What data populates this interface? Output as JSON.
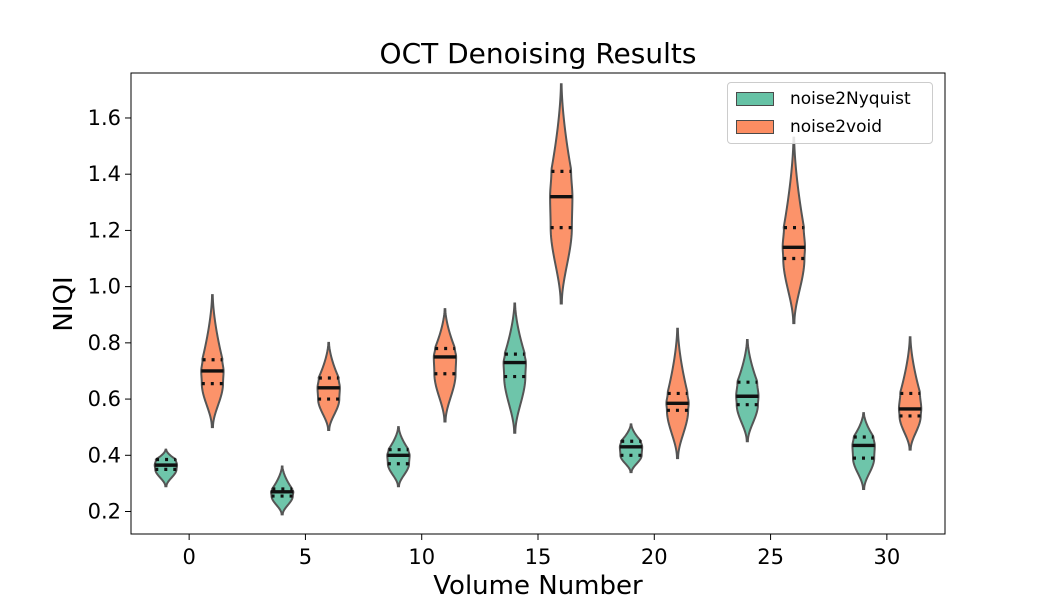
{
  "chart_data": {
    "type": "violin",
    "title": "OCT Denoising Results",
    "xlabel": "Volume Number",
    "ylabel": "NIQI",
    "xlim": [
      -2.5,
      32.5
    ],
    "ylim": [
      0.12,
      1.76
    ],
    "x_ticks": [
      0,
      5,
      10,
      15,
      20,
      25,
      30
    ],
    "y_ticks": [
      0.2,
      0.4,
      0.6,
      0.8,
      1.0,
      1.2,
      1.4,
      1.6
    ],
    "y_tick_labels": [
      "0.2",
      "0.4",
      "0.6",
      "0.8",
      "1.0",
      "1.2",
      "1.4",
      "1.6"
    ],
    "grid": false,
    "legend_position": "top-right",
    "inner": "quartile",
    "series": [
      {
        "name": "noise2Nyquist",
        "color": "#66c2a5",
        "violins": [
          {
            "x": -1,
            "min": 0.29,
            "q1": 0.35,
            "median": 0.365,
            "q3": 0.385,
            "max": 0.42
          },
          {
            "x": 4,
            "min": 0.19,
            "q1": 0.255,
            "median": 0.27,
            "q3": 0.28,
            "max": 0.36
          },
          {
            "x": 9,
            "min": 0.29,
            "q1": 0.37,
            "median": 0.4,
            "q3": 0.42,
            "max": 0.5
          },
          {
            "x": 14,
            "min": 0.48,
            "q1": 0.68,
            "median": 0.73,
            "q3": 0.76,
            "max": 0.94
          },
          {
            "x": 19,
            "min": 0.34,
            "q1": 0.4,
            "median": 0.43,
            "q3": 0.45,
            "max": 0.51
          },
          {
            "x": 24,
            "min": 0.45,
            "q1": 0.58,
            "median": 0.61,
            "q3": 0.66,
            "max": 0.81
          },
          {
            "x": 29,
            "min": 0.28,
            "q1": 0.39,
            "median": 0.435,
            "q3": 0.465,
            "max": 0.55
          }
        ]
      },
      {
        "name": "noise2void",
        "color": "#fc8d62",
        "violins": [
          {
            "x": 1,
            "min": 0.5,
            "q1": 0.655,
            "median": 0.7,
            "q3": 0.74,
            "max": 0.97
          },
          {
            "x": 6,
            "min": 0.49,
            "q1": 0.6,
            "median": 0.64,
            "q3": 0.675,
            "max": 0.8
          },
          {
            "x": 11,
            "min": 0.52,
            "q1": 0.69,
            "median": 0.75,
            "q3": 0.78,
            "max": 0.92
          },
          {
            "x": 16,
            "min": 0.94,
            "q1": 1.21,
            "median": 1.32,
            "q3": 1.41,
            "max": 1.72
          },
          {
            "x": 21,
            "min": 0.39,
            "q1": 0.56,
            "median": 0.585,
            "q3": 0.62,
            "max": 0.85
          },
          {
            "x": 26,
            "min": 0.87,
            "q1": 1.1,
            "median": 1.14,
            "q3": 1.21,
            "max": 1.53
          },
          {
            "x": 31,
            "min": 0.42,
            "q1": 0.54,
            "median": 0.565,
            "q3": 0.62,
            "max": 0.82
          }
        ]
      }
    ]
  }
}
